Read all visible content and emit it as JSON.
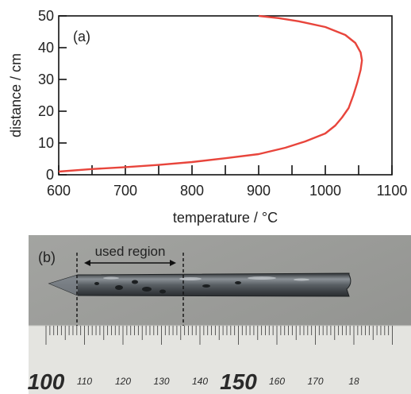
{
  "chart_data": {
    "type": "line",
    "panel_label": "(a)",
    "xlabel": "temperature / °C",
    "ylabel": "distance / cm",
    "xlim": [
      600,
      1100
    ],
    "ylim": [
      0,
      50
    ],
    "x_ticks": [
      "600",
      "700",
      "800",
      "900",
      "1000",
      "1100"
    ],
    "y_ticks": [
      "0",
      "10",
      "20",
      "30",
      "40",
      "50"
    ],
    "grid": false,
    "series": [
      {
        "color": "#e8453c",
        "x": [
          600,
          650,
          700,
          750,
          800,
          850,
          900,
          940,
          970,
          1000,
          1015,
          1025,
          1035,
          1042,
          1048,
          1053,
          1055,
          1053,
          1045,
          1030,
          1000,
          960,
          930,
          900
        ],
        "y": [
          1,
          1.8,
          2.4,
          3.1,
          4,
          5.2,
          6.5,
          8.5,
          10.5,
          13,
          15.5,
          18,
          21,
          25,
          29,
          33,
          36,
          38.5,
          41.5,
          44,
          46.5,
          48.3,
          49.3,
          50
        ]
      }
    ]
  },
  "photo": {
    "panel_label": "(b)",
    "annotation": "used region",
    "ruler_labels": [
      "100",
      "110",
      "120",
      "130",
      "140",
      "150",
      "160",
      "170",
      "18"
    ],
    "background_color": "#9c9d9a",
    "ruler_color": "#e4e4e0",
    "rod_color": "#4d5256"
  }
}
